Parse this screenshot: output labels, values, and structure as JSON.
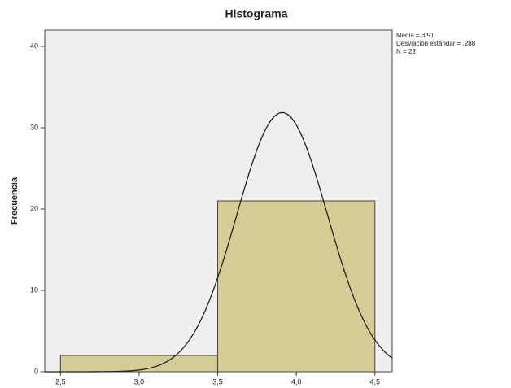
{
  "chart_data": {
    "type": "histogram",
    "title": "Histograma",
    "y_label": "Frecuencia",
    "bins": [
      2.5,
      3.5,
      4.5
    ],
    "values": [
      2,
      21
    ],
    "color": "#d4cd93",
    "xlim": [
      2.4,
      4.61
    ],
    "xticks": [
      {
        "value": 2.5,
        "label": "2,5"
      },
      {
        "value": 3.0,
        "label": "3,0"
      },
      {
        "value": 3.5,
        "label": "3,5"
      },
      {
        "value": 4.0,
        "label": "4,0"
      },
      {
        "value": 4.5,
        "label": "4,5"
      }
    ],
    "ylim": [
      0,
      42
    ],
    "yticks": [
      0,
      10,
      20,
      30,
      40
    ],
    "normal_curve": {
      "mean": 3.91,
      "sd": 0.288,
      "n": 23
    },
    "stats_labels": [
      "Media = 3,91",
      "Desviación estándar = ,288",
      "N = 23"
    ]
  }
}
